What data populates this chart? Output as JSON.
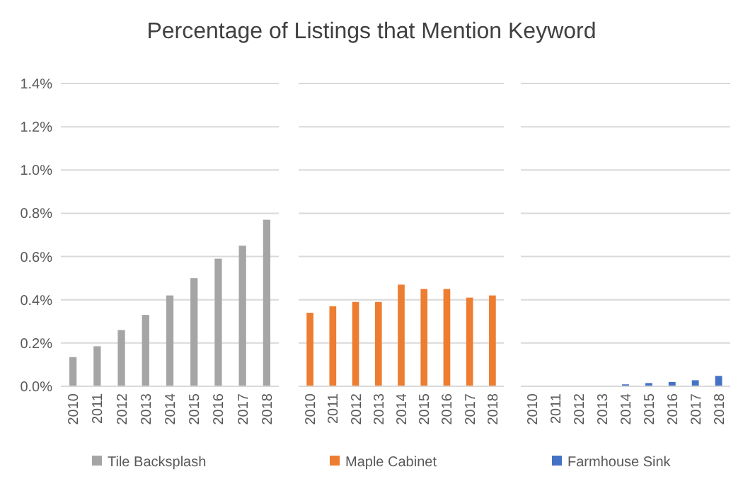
{
  "chart_data": [
    {
      "type": "bar",
      "title": "Percentage of Listings that Mention Keyword",
      "categories": [
        "2010",
        "2011",
        "2012",
        "2013",
        "2014",
        "2015",
        "2016",
        "2017",
        "2018"
      ],
      "series": [
        {
          "name": "Tile Backsplash",
          "color": "#a5a5a5",
          "values": [
            0.135,
            0.185,
            0.26,
            0.33,
            0.42,
            0.5,
            0.59,
            0.65,
            0.77
          ]
        }
      ],
      "ylim": [
        0,
        1.4
      ],
      "yticks": [
        {
          "value": 0,
          "label": "0.0%"
        },
        {
          "value": 0.2,
          "label": "0.2%"
        },
        {
          "value": 0.4,
          "label": "0.4%"
        },
        {
          "value": 0.6,
          "label": "0.6%"
        },
        {
          "value": 0.8,
          "label": "0.8%"
        },
        {
          "value": 1.0,
          "label": "1.0%"
        },
        {
          "value": 1.2,
          "label": "1.2%"
        },
        {
          "value": 1.4,
          "label": "1.4%"
        }
      ],
      "grid": "y",
      "legend": "bottom"
    },
    {
      "type": "bar",
      "categories": [
        "2010",
        "2011",
        "2012",
        "2013",
        "2014",
        "2015",
        "2016",
        "2017",
        "2018"
      ],
      "series": [
        {
          "name": "Maple Cabinet",
          "color": "#ed7d31",
          "values": [
            0.34,
            0.37,
            0.39,
            0.39,
            0.47,
            0.45,
            0.45,
            0.41,
            0.42
          ]
        }
      ],
      "ylim": [
        0,
        1.4
      ],
      "yticks": [
        {
          "value": 0,
          "label": null
        },
        {
          "value": 0.2,
          "label": null
        },
        {
          "value": 0.4,
          "label": null
        },
        {
          "value": 0.6,
          "label": null
        },
        {
          "value": 0.8,
          "label": null
        },
        {
          "value": 1.0,
          "label": null
        },
        {
          "value": 1.2,
          "label": null
        },
        {
          "value": 1.4,
          "label": null
        }
      ],
      "grid": "y",
      "legend": "bottom",
      "tick_labels": "x"
    },
    {
      "type": "bar",
      "categories": [
        "2010",
        "2011",
        "2012",
        "2013",
        "2014",
        "2015",
        "2016",
        "2017",
        "2018"
      ],
      "series": [
        {
          "name": "Farmhouse Sink",
          "color": "#4472c4",
          "values": [
            0,
            0,
            0,
            0,
            0.009,
            0.015,
            0.02,
            0.028,
            0.048
          ]
        }
      ],
      "ylim": [
        0,
        1.4
      ],
      "yticks": [
        {
          "value": 0,
          "label": null
        },
        {
          "value": 0.2,
          "label": null
        },
        {
          "value": 0.4,
          "label": null
        },
        {
          "value": 0.6,
          "label": null
        },
        {
          "value": 0.8,
          "label": null
        },
        {
          "value": 1.0,
          "label": null
        },
        {
          "value": 1.2,
          "label": null
        },
        {
          "value": 1.4,
          "label": null
        }
      ],
      "grid": "y",
      "legend": "bottom",
      "tick_labels": "x"
    }
  ]
}
